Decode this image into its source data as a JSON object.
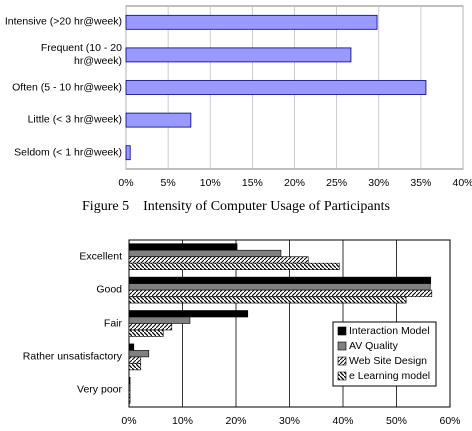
{
  "chart_data": [
    {
      "type": "hbar",
      "title": "Figure 5    Intensity of Computer Usage of Participants",
      "categories": [
        "Intensive (>20 hr@week)",
        "Frequent (10 - 20 hr@week)",
        "Often (5 - 10 hr@week)",
        "Little (< 3 hr@week)",
        "Seldom (< 1 hr@week)"
      ],
      "values": [
        29.8,
        26.7,
        35.6,
        7.7,
        0.5
      ],
      "color": "#9999ff",
      "xlim": [
        0,
        40
      ],
      "xticks": [
        {
          "value": 0,
          "label": "0%"
        },
        {
          "value": 5,
          "label": "5%"
        },
        {
          "value": 10,
          "label": "10%"
        },
        {
          "value": 15,
          "label": "15%"
        },
        {
          "value": 20,
          "label": "20%"
        },
        {
          "value": 25,
          "label": "25%"
        },
        {
          "value": 30,
          "label": "30%"
        },
        {
          "value": 35,
          "label": "35%"
        },
        {
          "value": 40,
          "label": "40%"
        }
      ],
      "grid": true
    },
    {
      "type": "grouped-hbar",
      "categories": [
        "Excellent",
        "Good",
        "Fair",
        "Rather unsatisfactory",
        "Very poor"
      ],
      "series": [
        {
          "name": "Interaction Model",
          "color": "#000000",
          "values": [
            20.2,
            56.4,
            22.2,
            0.9,
            0.2
          ]
        },
        {
          "name": "AV Quality",
          "color": "#808080",
          "values": [
            28.4,
            56.3,
            11.4,
            3.7,
            0.2
          ]
        },
        {
          "name": "Web Site Design",
          "color": "#c0c0c0",
          "pattern": "diag-up",
          "values": [
            33.5,
            56.6,
            8.0,
            2.2,
            0.2
          ]
        },
        {
          "name": "e Learning model",
          "color": "#606060",
          "pattern": "diag-down",
          "values": [
            39.3,
            51.8,
            6.4,
            2.2,
            0.2
          ]
        }
      ],
      "xlim": [
        0,
        60
      ],
      "xticks": [
        {
          "value": 0,
          "label": "0%"
        },
        {
          "value": 10,
          "label": "10%"
        },
        {
          "value": 20,
          "label": "20%"
        },
        {
          "value": 30,
          "label": "30%"
        },
        {
          "value": 40,
          "label": "40%"
        },
        {
          "value": 50,
          "label": "50%"
        },
        {
          "value": 60,
          "label": "60%"
        }
      ],
      "grid": true,
      "legend": "right"
    }
  ]
}
